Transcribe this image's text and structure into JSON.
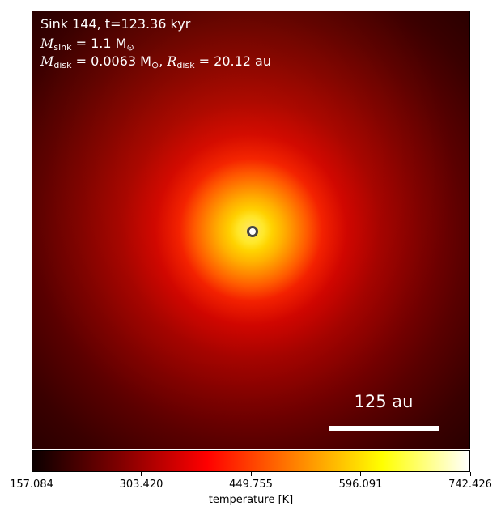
{
  "chart_data": {
    "type": "heatmap",
    "quantity": "temperature",
    "info": {
      "sink_line": "Sink 144, t=123.36 kyr",
      "msink_label": "M",
      "msink_sub": "sink",
      "msink_value": " = 1.1 M",
      "msink_sun": "⊙",
      "mdisk_label": "M",
      "mdisk_sub": "disk",
      "mdisk_value": " = 0.0063 M",
      "mdisk_sun": "⊙",
      "separator": ", ",
      "rdisk_label": "R",
      "rdisk_sub": "disk",
      "rdisk_value": " = 20.12 au"
    },
    "sink": {
      "marker": "sink-circle-marker",
      "position_au": [
        0,
        0
      ]
    },
    "scale_bar": {
      "label": "125 au",
      "length_au": 125
    },
    "colorbar": {
      "label": "temperature [K]",
      "colormap": "hot",
      "vmin": 157.084,
      "vmax": 742.426,
      "ticks": [
        157.084,
        303.42,
        449.755,
        596.091,
        742.426
      ],
      "tick_labels": [
        "157.084",
        "303.420",
        "449.755",
        "596.091",
        "742.426"
      ],
      "colors": [
        "#0b0000",
        "#800000",
        "#ff0000",
        "#ff8000",
        "#ffff00",
        "#ffffff"
      ]
    }
  }
}
